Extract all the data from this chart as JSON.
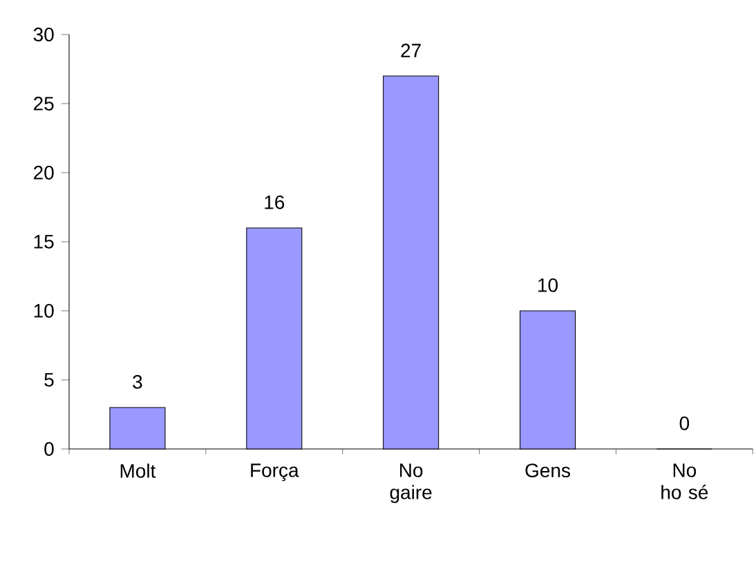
{
  "chart_data": {
    "type": "bar",
    "categories": [
      "Molt",
      "Força",
      "No gaire",
      "Gens",
      "No ho sé"
    ],
    "values": [
      3,
      16,
      27,
      10,
      0
    ],
    "color": "#9999ff",
    "ylim": [
      0,
      30
    ],
    "yticks": [
      0,
      5,
      10,
      15,
      20,
      25,
      30
    ],
    "data_labels": true,
    "grid": false
  }
}
